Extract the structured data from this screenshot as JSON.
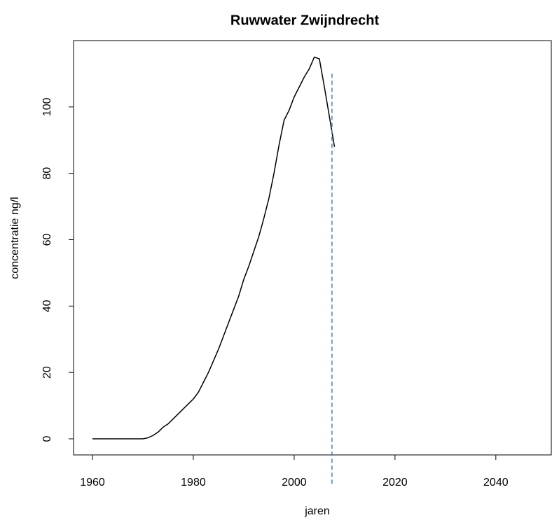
{
  "chart_data": {
    "type": "line",
    "title": "Ruwwater Zwijndrecht",
    "x_label": "jaren",
    "y_label": "concentratie ng/l",
    "x": [
      1960,
      1965,
      1970,
      1971,
      1972,
      1973,
      1974,
      1975,
      1976,
      1977,
      1978,
      1979,
      1980,
      1981,
      1982,
      1983,
      1984,
      1985,
      1986,
      1987,
      1988,
      1989,
      1990,
      1991,
      1992,
      1993,
      1994,
      1995,
      1996,
      1997,
      1998,
      1999,
      2000,
      2001,
      2002,
      2003,
      2004,
      2005,
      2006,
      2007,
      2008
    ],
    "series": [
      {
        "color": "#000000",
        "values": [
          0,
          0,
          0,
          0.3,
          1,
          2,
          3.5,
          4.5,
          6,
          7.5,
          9,
          10.5,
          12,
          14,
          17,
          20,
          23.5,
          27,
          31,
          35,
          39,
          43,
          48,
          52,
          56.5,
          61,
          66.5,
          72.5,
          80,
          88.5,
          96,
          99,
          103,
          106,
          109,
          111.5,
          115,
          114.5,
          106,
          97,
          88
        ]
      }
    ],
    "vline": {
      "x": 2007.5,
      "y_from": -14,
      "y_to": 110,
      "color": "#4a7fb5"
    },
    "xlim": [
      1956.25,
      2051
    ],
    "ylim": [
      -4.85,
      120
    ],
    "xticks": [
      1960,
      1980,
      2000,
      2020,
      2040
    ],
    "yticks": [
      0,
      20,
      40,
      60,
      80,
      100
    ]
  }
}
